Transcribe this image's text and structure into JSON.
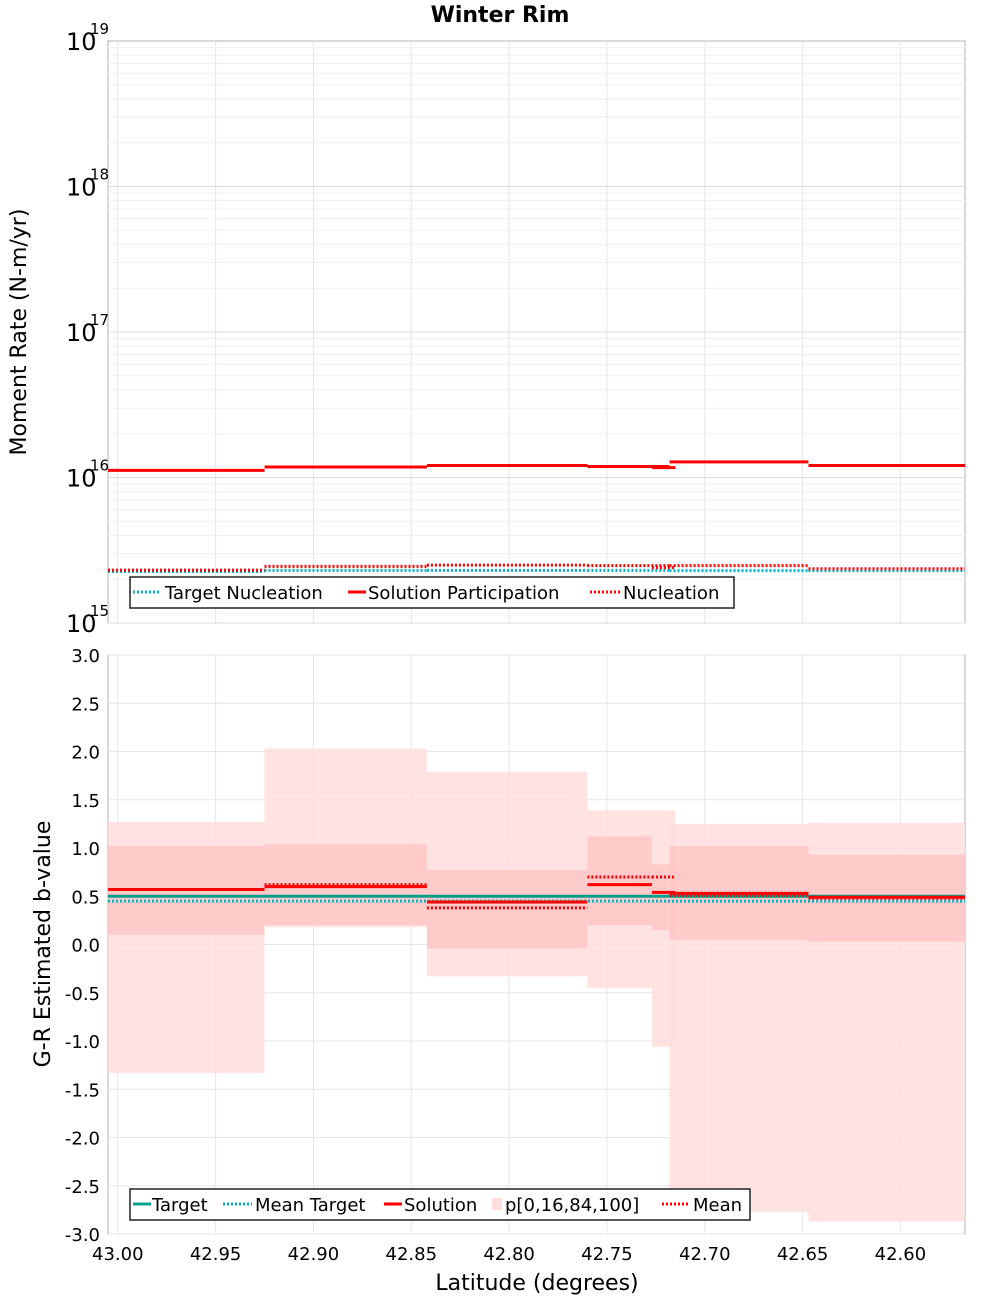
{
  "chart_data": {
    "title": "Winter Rim",
    "xlabel": "Latitude (degrees)",
    "x_reversed": true,
    "xlim": [
      43.005,
      42.567
    ],
    "x_ticks": [
      "43.00",
      "42.95",
      "42.90",
      "42.85",
      "42.80",
      "42.75",
      "42.70",
      "42.65",
      "42.60"
    ],
    "top": {
      "type": "step",
      "ylabel": "Moment Rate (N-m/yr)",
      "yscale": "log",
      "ylim": [
        1000000000000000.0,
        1e+19
      ],
      "y_ticks": [
        {
          "base": "10",
          "exp": "15"
        },
        {
          "base": "10",
          "exp": "16"
        },
        {
          "base": "10",
          "exp": "17"
        },
        {
          "base": "10",
          "exp": "18"
        },
        {
          "base": "10",
          "exp": "19"
        }
      ],
      "legend": [
        "Target Nucleation",
        "Solution Participation",
        "Nucleation"
      ],
      "series": [
        {
          "name": "Solution Participation",
          "color": "#ff0000",
          "style": "solid",
          "segments": [
            [
              43.005,
              42.925,
              1.12e+16
            ],
            [
              42.925,
              42.842,
              1.18e+16
            ],
            [
              42.842,
              42.76,
              1.21e+16
            ],
            [
              42.76,
              42.718,
              1.19e+16
            ],
            [
              42.727,
              42.715,
              1.17e+16
            ],
            [
              42.718,
              42.647,
              1.28e+16
            ],
            [
              42.647,
              42.567,
              1.21e+16
            ]
          ]
        },
        {
          "name": "Target Nucleation",
          "color": "#00b3c8",
          "style": "dotted",
          "segments": [
            [
              43.005,
              42.925,
              2260000000000000.0
            ],
            [
              42.925,
              42.842,
              2300000000000000.0
            ],
            [
              42.842,
              42.76,
              2300000000000000.0
            ],
            [
              42.76,
              42.718,
              2300000000000000.0
            ],
            [
              42.718,
              42.647,
              2290000000000000.0
            ],
            [
              42.647,
              42.567,
              2290000000000000.0
            ]
          ]
        },
        {
          "name": "Nucleation",
          "color": "#ff0000",
          "style": "dotted",
          "segments": [
            [
              43.005,
              42.925,
              2310000000000000.0
            ],
            [
              42.925,
              42.842,
              2450000000000000.0
            ],
            [
              42.842,
              42.76,
              2500000000000000.0
            ],
            [
              42.76,
              42.718,
              2480000000000000.0
            ],
            [
              42.727,
              42.715,
              2400000000000000.0
            ],
            [
              42.718,
              42.647,
              2480000000000000.0
            ],
            [
              42.647,
              42.567,
              2360000000000000.0
            ]
          ]
        }
      ]
    },
    "bottom": {
      "type": "step",
      "ylabel": "G-R Estimated b-value",
      "ylim": [
        -3.0,
        3.0
      ],
      "y_ticks": [
        "3.0",
        "2.5",
        "2.0",
        "1.5",
        "1.0",
        "0.5",
        "0.0",
        "-0.5",
        "-1.0",
        "-1.5",
        "-2.0",
        "-2.5",
        "-3.0"
      ],
      "legend": [
        "Target",
        "Mean Target",
        "Solution",
        "p[0,16,84,100]",
        "Mean"
      ],
      "target_value": 0.5,
      "mean_target_value": 0.45,
      "series": [
        {
          "x0": 43.005,
          "x1": 42.925,
          "p0": -1.33,
          "p16": 0.1,
          "p84": 1.02,
          "p100": 1.27,
          "solution": 0.57,
          "mean": 0.57
        },
        {
          "x0": 42.925,
          "x1": 42.842,
          "p0": 0.18,
          "p16": 0.2,
          "p84": 1.04,
          "p100": 2.03,
          "solution": 0.6,
          "mean": 0.62
        },
        {
          "x0": 42.842,
          "x1": 42.76,
          "p0": -0.33,
          "p16": -0.04,
          "p84": 0.77,
          "p100": 1.79,
          "solution": 0.44,
          "mean": 0.38
        },
        {
          "x0": 42.76,
          "x1": 42.727,
          "p0": -0.45,
          "p16": 0.2,
          "p84": 1.12,
          "p100": 1.39,
          "solution": 0.62,
          "mean": 0.7
        },
        {
          "x0": 42.727,
          "x1": 42.715,
          "p0": -1.06,
          "p16": 0.15,
          "p84": 0.83,
          "p100": 1.39,
          "solution": 0.54,
          "mean": 0.7
        },
        {
          "x0": 42.718,
          "x1": 42.647,
          "p0": -2.77,
          "p16": 0.05,
          "p84": 1.02,
          "p100": 1.25,
          "solution": 0.53,
          "mean": 0.51
        },
        {
          "x0": 42.647,
          "x1": 42.567,
          "p0": -2.87,
          "p16": 0.03,
          "p84": 0.93,
          "p100": 1.26,
          "solution": 0.49,
          "mean": 0.48
        }
      ]
    }
  },
  "colors": {
    "solution": "#ff0000",
    "target": "#00a08c",
    "mean_target": "#00b3c8",
    "band_outer": "#ffdddd",
    "band_inner": "#ffbbbb"
  }
}
